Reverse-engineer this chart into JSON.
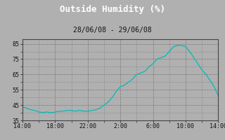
{
  "title": "Outside Humidity (%)",
  "subtitle": "28/06/08 - 29/06/08",
  "title_color": "#ffffff",
  "title_bg": "#111111",
  "plot_bg": "#b0b0b0",
  "fig_bg": "#b0b0b0",
  "line_color": "#00bbbb",
  "ylim": [
    35,
    88
  ],
  "yticks": [
    35,
    45,
    55,
    65,
    75,
    85
  ],
  "xtick_labels": [
    "14:00",
    "18:00",
    "22:00",
    "2:00",
    "6:00",
    "10:00",
    "14:00"
  ],
  "grid_color": "#777777",
  "data_x": [
    0,
    0.5,
    1,
    1.5,
    2,
    2.5,
    3,
    3.5,
    4,
    4.5,
    5,
    5.5,
    6,
    6.5,
    7,
    7.5,
    8,
    8.5,
    9,
    9.5,
    10,
    10.5,
    11,
    11.5,
    12,
    12.5,
    13,
    13.5,
    14,
    14.5,
    15,
    15.5,
    16,
    16.5,
    17,
    17.5,
    18,
    18.5,
    19,
    19.5,
    20,
    20.5,
    21,
    21.5,
    22,
    22.5,
    23,
    23.5,
    24
  ],
  "data_y": [
    44,
    43,
    42,
    41.5,
    40.5,
    40.2,
    40.5,
    40,
    40.5,
    41,
    41,
    41.5,
    41.5,
    41,
    41.5,
    41,
    41,
    41.5,
    42,
    43,
    45,
    47,
    50,
    54,
    57,
    58,
    60,
    62,
    65,
    66,
    67,
    70,
    72,
    75,
    76,
    77,
    80,
    83,
    84,
    84,
    83,
    80,
    76,
    72,
    68,
    65,
    61,
    57,
    51
  ]
}
